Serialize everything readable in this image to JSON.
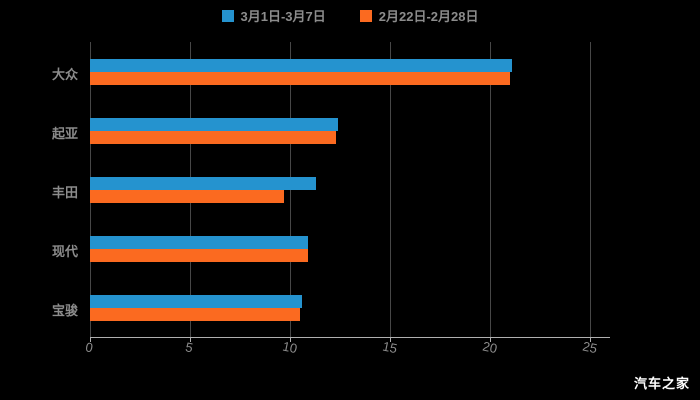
{
  "watermark": "汽车之家",
  "chart_data": {
    "type": "bar",
    "orientation": "horizontal",
    "title": "",
    "xlabel": "",
    "ylabel": "",
    "categories": [
      "大众",
      "起亚",
      "丰田",
      "现代",
      "宝骏"
    ],
    "series": [
      {
        "name": "3月1日-3月7日",
        "color": "#2593cf",
        "values": [
          21.1,
          12.4,
          11.3,
          10.9,
          10.6
        ]
      },
      {
        "name": "2月22日-2月28日",
        "color": "#fb6a20",
        "values": [
          21.0,
          12.3,
          9.7,
          10.9,
          10.5
        ]
      }
    ],
    "xlim": [
      0,
      25
    ],
    "xticks": [
      0,
      5,
      10,
      15,
      20,
      25
    ],
    "grid": true,
    "legend_position": "top",
    "background": "#000000"
  }
}
